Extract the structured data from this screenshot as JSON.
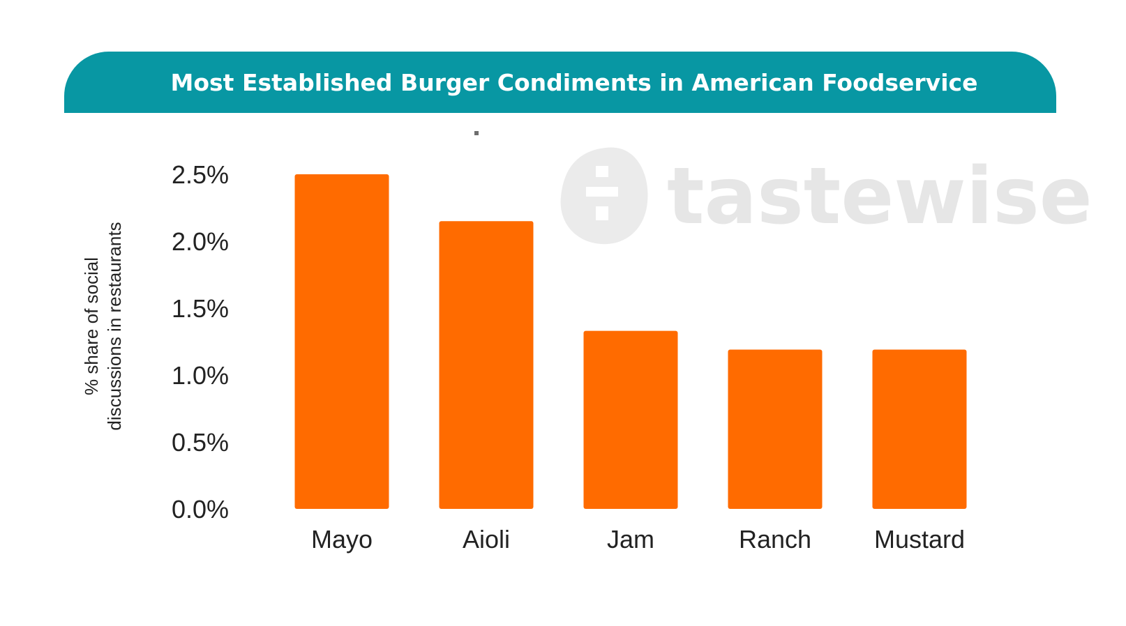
{
  "chart_data": {
    "type": "bar",
    "title": "Most Established Burger Condiments in American Foodservice",
    "ylabel_lines": [
      "% share of  social",
      "discussions in restaurants"
    ],
    "xlabel": "",
    "categories": [
      "Mayo",
      "Aioli",
      "Jam",
      "Ranch",
      "Mustard"
    ],
    "values": [
      2.5,
      2.15,
      1.33,
      1.19,
      1.19
    ],
    "ylim": [
      0,
      2.5
    ],
    "yticks": [
      "0.0%",
      "0.5%",
      "1.0%",
      "1.5%",
      "2.0%",
      "2.5%"
    ],
    "ytick_values": [
      0,
      0.5,
      1.0,
      1.5,
      2.0,
      2.5
    ],
    "grid": false,
    "bar_color": "#ff6b00"
  },
  "header": {
    "title": "Most Established Burger Condiments in American Foodservice",
    "banner_color": "#0897a3"
  },
  "watermark": {
    "text": "tastewise",
    "icon": "tastewise-logo-icon"
  }
}
